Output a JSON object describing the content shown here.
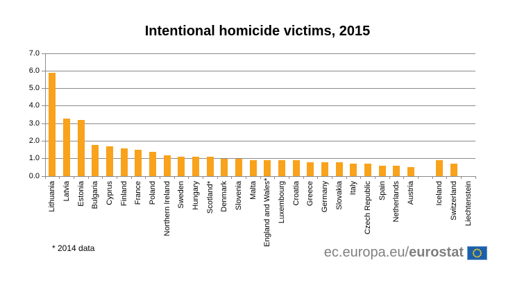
{
  "title": "Intentional homicide victims, 2015",
  "footnote": "* 2014 data",
  "logo": {
    "url_regular": "ec.europa.eu/",
    "url_bold": "eurostat",
    "flag_icon": "eu-flag-icon"
  },
  "colors": {
    "bar": "#F9A21B",
    "gridline": "#8A8A8A",
    "axis": "#8A8A8A",
    "logo_gray": "#7F7F7F",
    "flag_blue": "#1D5FA9",
    "flag_border": "#6E9BD1",
    "flag_stars": "#FFD617",
    "title_text": "#000000"
  },
  "chart_data": {
    "type": "bar",
    "title": "Intentional homicide victims, 2015",
    "categories": [
      "Lithuania",
      "Latvia",
      "Estonia",
      "Bulgaria",
      "Cyprus",
      "Finland",
      "France",
      "Poland",
      "Northern Ireland",
      "Sweden",
      "Hungary",
      "Scotland*",
      "Denmark",
      "Slovenia",
      "Malta",
      "England and Wales*",
      "Luxembourg",
      "Croatia",
      "Greece",
      "Germany",
      "Slovakia",
      "Italy",
      "Czech Republic",
      "Spain",
      "Netherlands",
      "Austria",
      "",
      "Iceland",
      "Switzerland",
      "Liechtenstein"
    ],
    "values": [
      5.9,
      3.3,
      3.2,
      1.8,
      1.7,
      1.6,
      1.5,
      1.4,
      1.2,
      1.1,
      1.1,
      1.1,
      1.0,
      1.0,
      0.9,
      0.9,
      0.9,
      0.9,
      0.8,
      0.8,
      0.8,
      0.7,
      0.7,
      0.6,
      0.6,
      0.5,
      null,
      0.9,
      0.7,
      0.0
    ],
    "xlabel": "",
    "ylabel": "",
    "ylim": [
      0,
      7
    ],
    "ytick_interval": 1.0,
    "ytick_labels": [
      "0.0",
      "1.0",
      "2.0",
      "3.0",
      "4.0",
      "5.0",
      "6.0",
      "7.0"
    ],
    "grid": "horizontal",
    "legend": "none",
    "bar_color": "#F9A21B",
    "note": "* 2014 data"
  }
}
